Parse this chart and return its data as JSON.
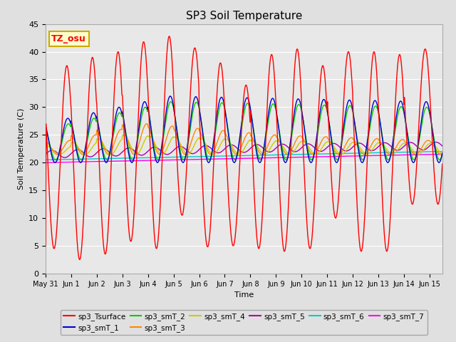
{
  "title": "SP3 Soil Temperature",
  "ylabel": "Soil Temperature (C)",
  "xlabel": "Time",
  "annotation": "TZ_osu",
  "ylim": [
    0,
    45
  ],
  "xlim_days": 15.5,
  "x_tick_labels": [
    "May 31",
    "Jun 1",
    "Jun 2",
    "Jun 3",
    "Jun 4",
    "Jun 5",
    "Jun 6",
    "Jun 7",
    "Jun 8",
    "Jun 9",
    "Jun 10",
    "Jun 11",
    "Jun 12",
    "Jun 13",
    "Jun 14",
    "Jun 15"
  ],
  "series_colors": {
    "sp3_Tsurface": "#FF0000",
    "sp3_smT_1": "#0000CC",
    "sp3_smT_2": "#00CC00",
    "sp3_smT_3": "#FF8800",
    "sp3_smT_4": "#CCCC00",
    "sp3_smT_5": "#AA00AA",
    "sp3_smT_6": "#00CCCC",
    "sp3_smT_7": "#FF00FF"
  },
  "fig_bg": "#E0E0E0",
  "plot_bg": "#E8E8E8",
  "grid_color": "#FFFFFF",
  "surface_peaks": [
    37.5,
    39.0,
    40.0,
    41.8,
    42.8,
    40.7,
    38.0,
    34.0,
    39.5,
    40.5,
    37.5,
    40.0,
    40.0,
    39.5,
    40.5
  ],
  "surface_troughs": [
    4.5,
    2.5,
    3.5,
    5.8,
    4.5,
    10.5,
    4.8,
    5.0,
    4.5,
    4.0,
    4.5,
    10.0,
    4.0,
    4.0,
    12.5
  ]
}
